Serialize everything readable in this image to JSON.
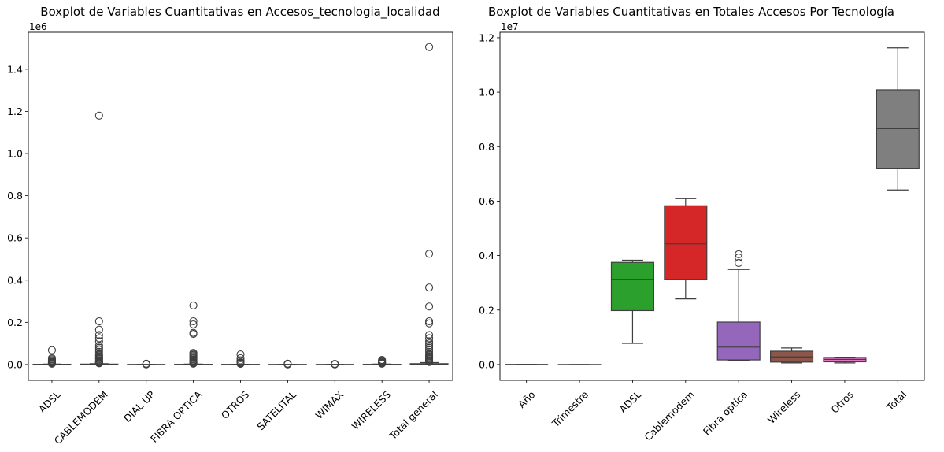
{
  "chart_data": [
    {
      "type": "boxplot",
      "title": "Boxplot de Variables Cuantitativas en Accesos_tecnologia_localidad",
      "xlabel": "",
      "ylabel": "",
      "scale_label": "1e6",
      "ylim": [
        -0.075,
        1.575
      ],
      "yticks": [
        0.0,
        0.2,
        0.4,
        0.6,
        0.8,
        1.0,
        1.2,
        1.4
      ],
      "ytick_labels": [
        "0.0",
        "0.2",
        "0.4",
        "0.6",
        "0.8",
        "1.0",
        "1.2",
        "1.4"
      ],
      "grid": false,
      "categories": [
        "ADSL",
        "CABLEMODEM",
        "DIAL UP",
        "FIBRA OPTICA",
        "OTROS",
        "SATELITAL",
        "WIMAX",
        "WIRELESS",
        "Total general"
      ],
      "colors": [
        "#1f77b4",
        "#ff7f0e",
        "#2ca02c",
        "#d62728",
        "#9467bd",
        "#8c564b",
        "#e377c2",
        "#7f7f7f",
        "#bcbd22"
      ],
      "boxes": [
        {
          "q1": 0,
          "median": 0.0005,
          "q3": 0.001,
          "whisker_low": 0,
          "whisker_high": 0.002,
          "outliers": [
            0.068,
            0.03,
            0.025,
            0.02,
            0.015,
            0.012,
            0.01,
            0.008,
            0.006,
            0.005,
            0.004
          ]
        },
        {
          "q1": 0,
          "median": 0.001,
          "q3": 0.002,
          "whisker_low": 0,
          "whisker_high": 0.004,
          "outliers": [
            1.18,
            0.205,
            0.165,
            0.14,
            0.125,
            0.11,
            0.09,
            0.08,
            0.07,
            0.06,
            0.05,
            0.045,
            0.04,
            0.035,
            0.03,
            0.025,
            0.02,
            0.015,
            0.012,
            0.01,
            0.008,
            0.006
          ]
        },
        {
          "q1": 0,
          "median": 0,
          "q3": 0,
          "whisker_low": 0,
          "whisker_high": 0,
          "outliers": [
            0.004,
            0.002,
            0.001
          ]
        },
        {
          "q1": 0,
          "median": 0.0003,
          "q3": 0.0008,
          "whisker_low": 0,
          "whisker_high": 0.002,
          "outliers": [
            0.28,
            0.205,
            0.19,
            0.15,
            0.145,
            0.055,
            0.05,
            0.045,
            0.04,
            0.035,
            0.03,
            0.025,
            0.02,
            0.015,
            0.01,
            0.008,
            0.006,
            0.004
          ]
        },
        {
          "q1": 0,
          "median": 0,
          "q3": 0.0005,
          "whisker_low": 0,
          "whisker_high": 0.001,
          "outliers": [
            0.048,
            0.03,
            0.02,
            0.012,
            0.008,
            0.005,
            0.003
          ]
        },
        {
          "q1": 0,
          "median": 0,
          "q3": 0,
          "whisker_low": 0,
          "whisker_high": 0,
          "outliers": [
            0.004,
            0.002,
            0.001
          ]
        },
        {
          "q1": 0,
          "median": 0,
          "q3": 0,
          "whisker_low": 0,
          "whisker_high": 0,
          "outliers": [
            0.003,
            0.002,
            0.001
          ]
        },
        {
          "q1": 0,
          "median": 0.0003,
          "q3": 0.0008,
          "whisker_low": 0,
          "whisker_high": 0.002,
          "outliers": [
            0.022,
            0.018,
            0.014,
            0.01,
            0.008,
            0.006,
            0.004
          ]
        },
        {
          "q1": 0.0005,
          "median": 0.002,
          "q3": 0.004,
          "whisker_low": 0,
          "whisker_high": 0.009,
          "outliers": [
            1.505,
            0.525,
            0.365,
            0.275,
            0.205,
            0.195,
            0.14,
            0.125,
            0.11,
            0.1,
            0.09,
            0.08,
            0.07,
            0.06,
            0.05,
            0.045,
            0.04,
            0.035,
            0.03,
            0.025,
            0.02,
            0.015,
            0.012
          ]
        }
      ]
    },
    {
      "type": "boxplot",
      "title": "Boxplot de Variables Cuantitativas en Totales Accesos Por Tecnología",
      "xlabel": "",
      "ylabel": "",
      "scale_label": "1e7",
      "ylim": [
        -0.058,
        1.22
      ],
      "yticks": [
        0.0,
        0.2,
        0.4,
        0.6,
        0.8,
        1.0,
        1.2
      ],
      "ytick_labels": [
        "0.0",
        "0.2",
        "0.4",
        "0.6",
        "0.8",
        "1.0",
        "1.2"
      ],
      "grid": false,
      "categories": [
        "Año",
        "Trimestre",
        "ADSL",
        "Cablemodem",
        "Fibra óptica",
        "Wireless",
        "Otros",
        "Total"
      ],
      "colors": [
        "#1f77b4",
        "#ff7f0e",
        "#2ca02c",
        "#d62728",
        "#9467bd",
        "#8c564b",
        "#e377c2",
        "#7f7f7f"
      ],
      "boxes": [
        {
          "q1": 0.0002,
          "median": 0.0002,
          "q3": 0.0002,
          "whisker_low": 0.0002,
          "whisker_high": 0.0002,
          "outliers": []
        },
        {
          "q1": 0,
          "median": 0,
          "q3": 0,
          "whisker_low": 0,
          "whisker_high": 0,
          "outliers": []
        },
        {
          "q1": 0.198,
          "median": 0.313,
          "q3": 0.375,
          "whisker_low": 0.078,
          "whisker_high": 0.383,
          "outliers": []
        },
        {
          "q1": 0.313,
          "median": 0.443,
          "q3": 0.583,
          "whisker_low": 0.241,
          "whisker_high": 0.609,
          "outliers": []
        },
        {
          "q1": 0.017,
          "median": 0.064,
          "q3": 0.156,
          "whisker_low": 0.015,
          "whisker_high": 0.349,
          "outliers": [
            0.405,
            0.393,
            0.373
          ]
        },
        {
          "q1": 0.009,
          "median": 0.028,
          "q3": 0.049,
          "whisker_low": 0.006,
          "whisker_high": 0.061,
          "outliers": []
        },
        {
          "q1": 0.01,
          "median": 0.019,
          "q3": 0.026,
          "whisker_low": 0.006,
          "whisker_high": 0.027,
          "outliers": []
        },
        {
          "q1": 0.721,
          "median": 0.866,
          "q3": 1.009,
          "whisker_low": 0.641,
          "whisker_high": 1.163,
          "outliers": []
        }
      ]
    }
  ]
}
